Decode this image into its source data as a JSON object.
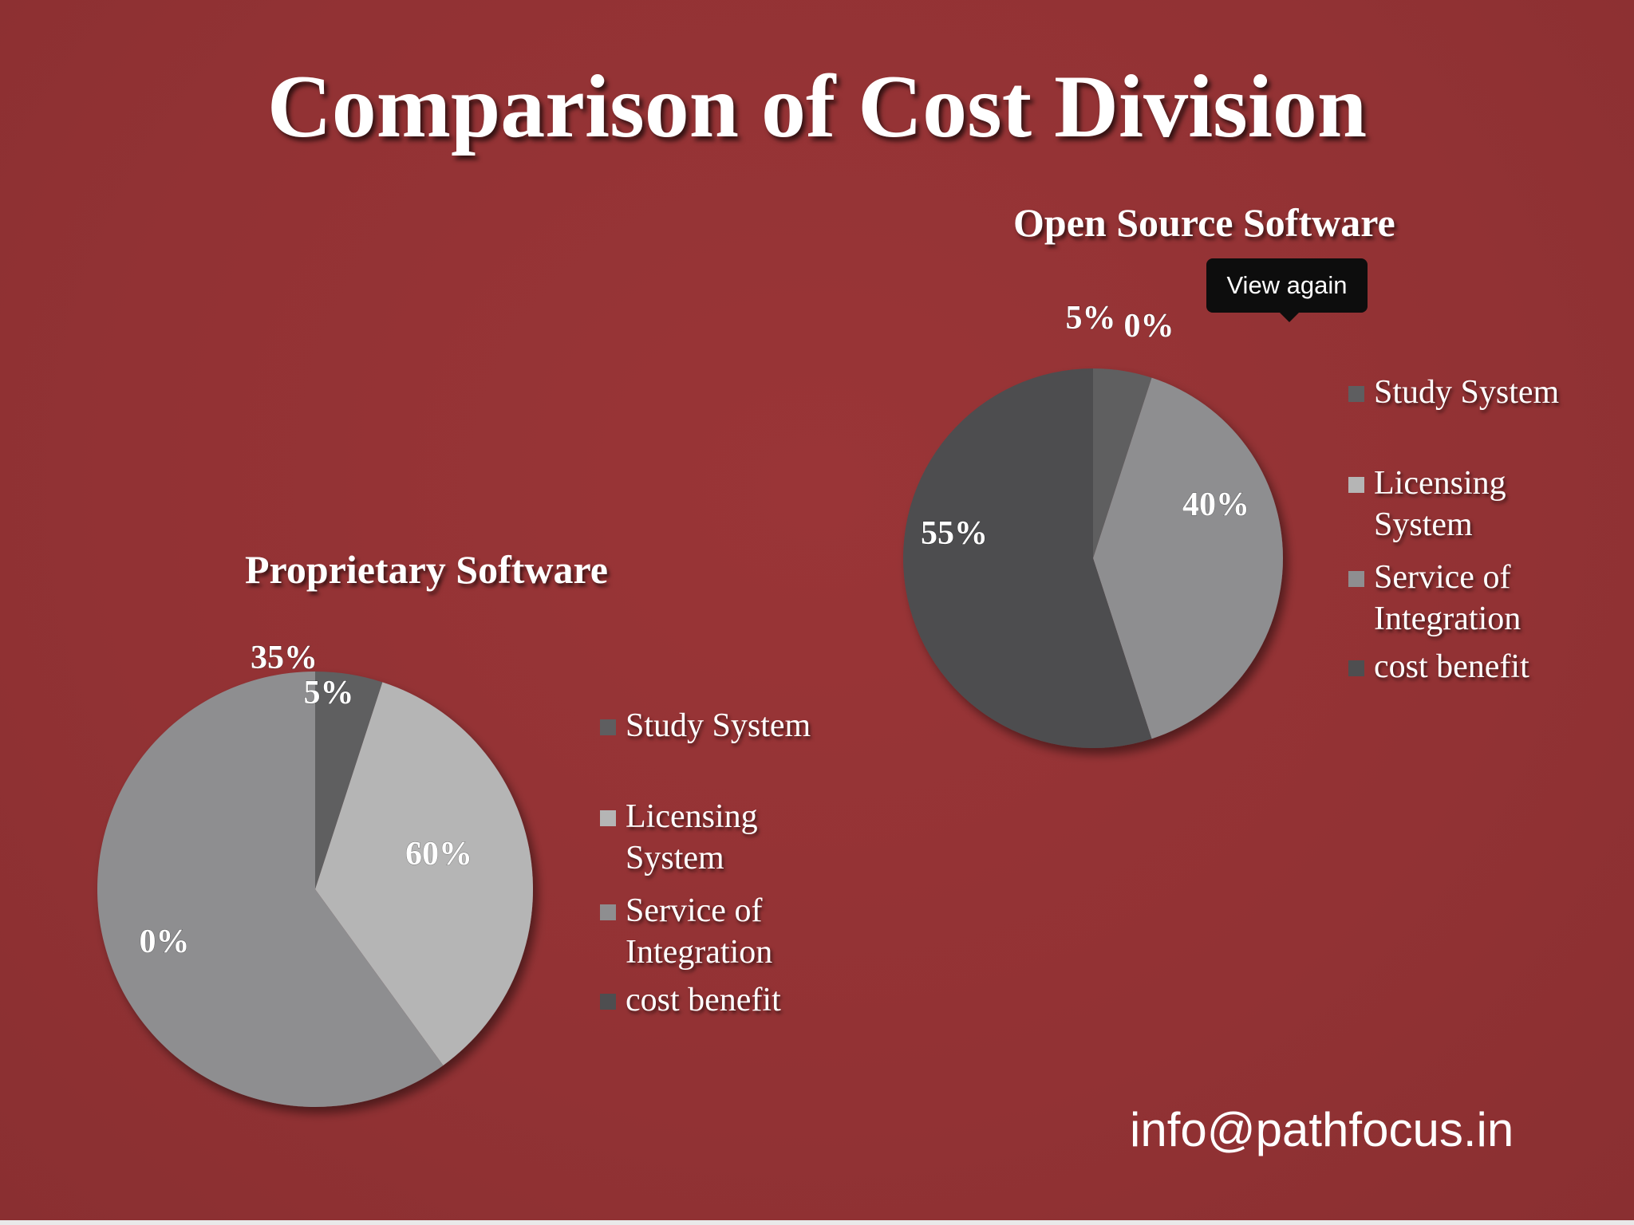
{
  "title": "Comparison of Cost Division",
  "tooltip": "View again",
  "email": "info@pathfocus.in",
  "colors": {
    "background": "#923234",
    "study_system": "#5e5e60",
    "licensing_system": "#b5b5b5",
    "service_of_integration": "#8e8e90",
    "cost_benefit": "#4e4e50"
  },
  "chart_data": [
    {
      "type": "pie",
      "title": "Open Source Software",
      "categories": [
        "Study System",
        "Licensing System",
        "Service of Integration",
        "cost benefit"
      ],
      "legend_labels": [
        [
          "Study System"
        ],
        [
          "Licensing",
          "System"
        ],
        [
          "Service of",
          "Integration"
        ],
        [
          "cost benefit"
        ]
      ],
      "values": [
        5,
        0,
        40,
        55
      ],
      "data_labels": [
        "5%",
        "0%",
        "40%",
        "55%"
      ],
      "legend": "right"
    },
    {
      "type": "pie",
      "title": "Proprietary Software",
      "categories": [
        "Study System",
        "Licensing System",
        "Service of Integration",
        "cost benefit"
      ],
      "legend_labels": [
        [
          "Study System"
        ],
        [
          "Licensing",
          "System"
        ],
        [
          "Service of",
          "Integration"
        ],
        [
          "cost benefit"
        ]
      ],
      "values": [
        5,
        35,
        60,
        0
      ],
      "data_labels": [
        "5%",
        "35%",
        "60%",
        "0%"
      ],
      "legend": "right"
    }
  ]
}
